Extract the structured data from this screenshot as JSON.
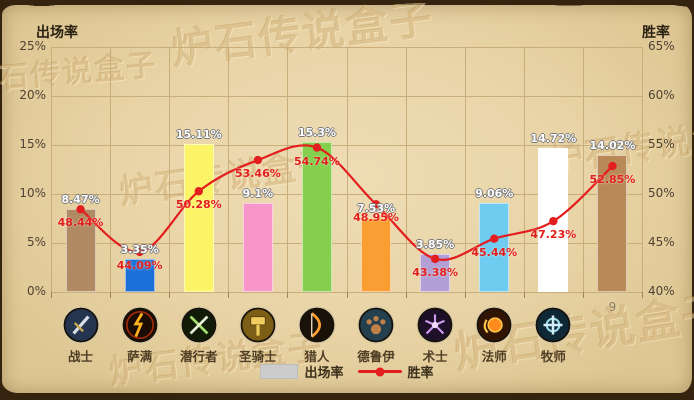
{
  "watermark": {
    "text": "炉石传说盒子"
  },
  "header": {
    "left_axis_title": "出场率",
    "right_axis_title": "胜率"
  },
  "legend": {
    "play_rate_label": "出场率",
    "win_rate_label": "胜率"
  },
  "colors": {
    "accent_red": "#e31e1e",
    "legend_swatch": "#cccccc",
    "grid": "#c9ae7c",
    "parchment": "#e9d4a7",
    "frame": "#34240f"
  },
  "chart_data": {
    "type": "bar+line",
    "categories": [
      "战士",
      "萨满",
      "潜行者",
      "圣骑士",
      "猎人",
      "德鲁伊",
      "术士",
      "法师",
      "牧师",
      "9"
    ],
    "category_icons": [
      "warrior-sword-icon",
      "shaman-lightning-icon",
      "rogue-daggers-icon",
      "paladin-hammer-icon",
      "hunter-bow-icon",
      "druid-claw-icon",
      "warlock-fel-icon",
      "mage-fireball-icon",
      "priest-holy-icon",
      null
    ],
    "series": [
      {
        "name": "出场率",
        "type": "bar",
        "axis": "left",
        "values": [
          8.47,
          3.35,
          15.11,
          9.1,
          15.3,
          7.53,
          3.85,
          9.06,
          14.72,
          14.02
        ],
        "labels": [
          "8.47%",
          "3.35%",
          "15.11%",
          "9.1%",
          "15.3%",
          "7.53%",
          "3.85%",
          "9.06%",
          "14.72%",
          "14.02%"
        ],
        "bar_colors": [
          "#b08a63",
          "#1d70d8",
          "#fcf467",
          "#f895c9",
          "#84cf4e",
          "#fa9d33",
          "#b29fd6",
          "#70cbf0",
          "#ffffff",
          "#b98a58"
        ]
      },
      {
        "name": "胜率",
        "type": "line",
        "axis": "right",
        "color": "#e31e1e",
        "values": [
          48.44,
          44.09,
          50.28,
          53.46,
          54.74,
          48.95,
          43.38,
          45.44,
          47.23,
          52.85
        ],
        "labels": [
          "48.44%",
          "44.09%",
          "50.28%",
          "53.46%",
          "54.74%",
          "48.95%",
          "43.38%",
          "45.44%",
          "47.23%",
          "52.85%"
        ]
      }
    ],
    "left_axis": {
      "title": "出场率",
      "range": [
        0,
        25
      ],
      "ticks": [
        "0%",
        "5%",
        "10%",
        "15%",
        "20%",
        "25%"
      ]
    },
    "right_axis": {
      "title": "胜率",
      "range": [
        40,
        65
      ],
      "ticks": [
        "40%",
        "45%",
        "50%",
        "55%",
        "60%",
        "65%"
      ]
    },
    "grid": true,
    "legend_position": "bottom-center"
  }
}
